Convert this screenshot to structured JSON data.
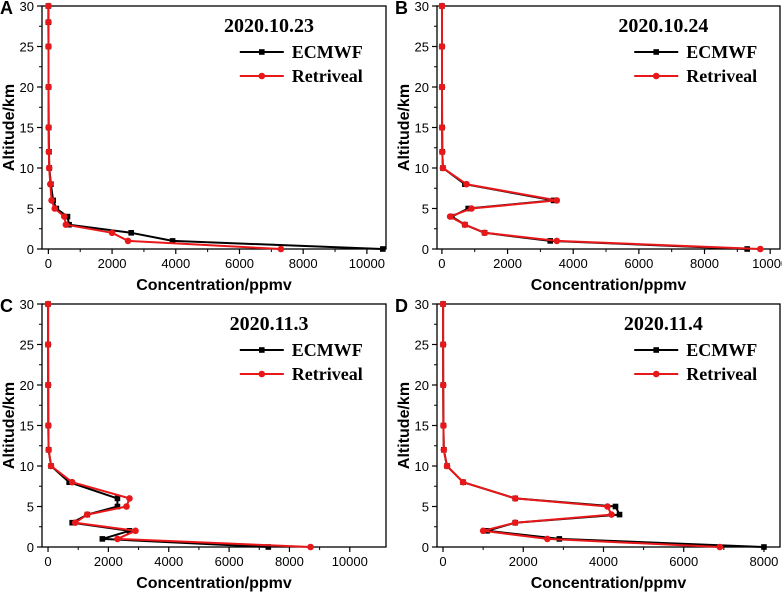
{
  "chart_data": [
    {
      "type": "line",
      "panel_label": "A",
      "title": "2020.10.23",
      "xlabel": "Concentration/ppmv",
      "ylabel": "Altitude/km",
      "xlim": [
        -200,
        10600
      ],
      "ylim": [
        0,
        30
      ],
      "xticks": [
        0,
        2000,
        4000,
        6000,
        8000,
        10000
      ],
      "xtick_labels": [
        "0",
        "2000",
        "4000",
        "6000",
        "8000",
        "10000"
      ],
      "yticks": [
        0,
        5,
        10,
        15,
        20,
        25,
        30
      ],
      "ytick_labels": [
        "0",
        "5",
        "10",
        "15",
        "20",
        "25",
        "30"
      ],
      "legend": "top-right",
      "series": [
        {
          "name": "ECMWF",
          "color": "#000000",
          "marker": "square",
          "x": [
            10500,
            3900,
            2600,
            650,
            600,
            250,
            150,
            80,
            30,
            20,
            10,
            5,
            3,
            2,
            1
          ],
          "y": [
            0,
            1,
            2,
            3,
            4,
            5,
            6,
            8,
            10,
            12,
            15,
            20,
            25,
            28,
            30
          ]
        },
        {
          "name": "Retriveal",
          "color": "#e8181a",
          "marker": "circle",
          "x": [
            7300,
            2500,
            2000,
            550,
            500,
            200,
            100,
            60,
            25,
            15,
            8,
            5,
            3,
            2,
            1
          ],
          "y": [
            0,
            1,
            2,
            3,
            4,
            5,
            6,
            8,
            10,
            12,
            15,
            20,
            25,
            28,
            30
          ]
        }
      ]
    },
    {
      "type": "line",
      "panel_label": "B",
      "title": "2020.10.24",
      "xlabel": "Concentration/ppmv",
      "ylabel": "Altitude/km",
      "xlim": [
        -150,
        10300
      ],
      "ylim": [
        0,
        30
      ],
      "xticks": [
        0,
        2000,
        4000,
        6000,
        8000,
        10000
      ],
      "xtick_labels": [
        "0",
        "2000",
        "4000",
        "6000",
        "8000",
        "10000"
      ],
      "yticks": [
        0,
        5,
        10,
        15,
        20,
        25,
        30
      ],
      "ytick_labels": [
        "0",
        "5",
        "10",
        "15",
        "20",
        "25",
        "30"
      ],
      "legend": "top-right",
      "series": [
        {
          "name": "ECMWF",
          "color": "#000000",
          "marker": "square",
          "x": [
            9300,
            3300,
            1300,
            700,
            300,
            800,
            3400,
            700,
            30,
            10,
            5,
            3,
            2,
            1
          ],
          "y": [
            0,
            1,
            2,
            3,
            4,
            5,
            6,
            8,
            10,
            12,
            15,
            20,
            25,
            30
          ]
        },
        {
          "name": "Retriveal",
          "color": "#e8181a",
          "marker": "circle",
          "x": [
            9700,
            3500,
            1300,
            700,
            250,
            900,
            3500,
            750,
            30,
            10,
            5,
            3,
            2,
            1
          ],
          "y": [
            0,
            1,
            2,
            3,
            4,
            5,
            6,
            8,
            10,
            12,
            15,
            20,
            25,
            30
          ]
        }
      ]
    },
    {
      "type": "line",
      "panel_label": "C",
      "title": "2020.11.3",
      "xlabel": "Concentration/ppmv",
      "ylabel": "Altitude/km",
      "xlim": [
        -200,
        11200
      ],
      "ylim": [
        0,
        30
      ],
      "xticks": [
        0,
        2000,
        4000,
        6000,
        8000,
        10000
      ],
      "xtick_labels": [
        "0",
        "2000",
        "4000",
        "6000",
        "8000",
        "10000"
      ],
      "yticks": [
        0,
        5,
        10,
        15,
        20,
        25,
        30
      ],
      "ytick_labels": [
        "0",
        "5",
        "10",
        "15",
        "20",
        "25",
        "30"
      ],
      "legend": "top-right",
      "series": [
        {
          "name": "ECMWF",
          "color": "#000000",
          "marker": "square",
          "x": [
            7300,
            1800,
            2700,
            800,
            1300,
            2300,
            2300,
            700,
            100,
            20,
            10,
            5,
            3,
            1
          ],
          "y": [
            0,
            1,
            2,
            3,
            4,
            5,
            6,
            8,
            10,
            12,
            15,
            20,
            25,
            30
          ]
        },
        {
          "name": "Retriveal",
          "color": "#e8181a",
          "marker": "circle",
          "x": [
            8700,
            2300,
            2900,
            900,
            1300,
            2600,
            2700,
            800,
            100,
            20,
            10,
            5,
            3,
            1
          ],
          "y": [
            0,
            1,
            2,
            3,
            4,
            5,
            6,
            8,
            10,
            12,
            15,
            20,
            25,
            30
          ]
        }
      ]
    },
    {
      "type": "line",
      "panel_label": "D",
      "title": "2020.11.4",
      "xlabel": "Concentration/ppmv",
      "ylabel": "Altitude/km",
      "xlim": [
        -150,
        8400
      ],
      "ylim": [
        0,
        30
      ],
      "xticks": [
        0,
        2000,
        4000,
        6000,
        8000
      ],
      "xtick_labels": [
        "0",
        "2000",
        "4000",
        "6000",
        "8000"
      ],
      "yticks": [
        0,
        5,
        10,
        15,
        20,
        25,
        30
      ],
      "ytick_labels": [
        "0",
        "5",
        "10",
        "15",
        "20",
        "25",
        "30"
      ],
      "legend": "top-right",
      "series": [
        {
          "name": "ECMWF",
          "color": "#000000",
          "marker": "square",
          "x": [
            8000,
            2900,
            1100,
            1800,
            4400,
            4300,
            1800,
            500,
            100,
            20,
            10,
            5,
            3,
            1
          ],
          "y": [
            0,
            1,
            2,
            3,
            4,
            5,
            6,
            8,
            10,
            12,
            15,
            20,
            25,
            30
          ]
        },
        {
          "name": "Retriveal",
          "color": "#e8181a",
          "marker": "circle",
          "x": [
            6900,
            2600,
            1000,
            1800,
            4200,
            4100,
            1800,
            500,
            100,
            20,
            10,
            5,
            3,
            1
          ],
          "y": [
            0,
            1,
            2,
            3,
            4,
            5,
            6,
            8,
            10,
            12,
            15,
            20,
            25,
            30
          ]
        }
      ]
    }
  ]
}
